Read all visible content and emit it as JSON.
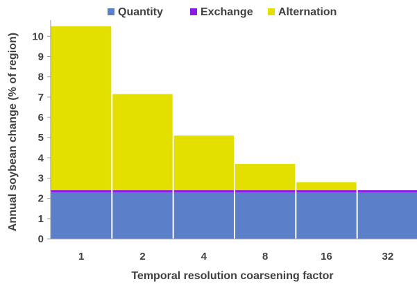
{
  "chart_data": {
    "type": "bar",
    "stacked": true,
    "categories": [
      "1",
      "2",
      "4",
      "8",
      "16",
      "32"
    ],
    "series": [
      {
        "name": "Quantity",
        "color": "#5B7FC9",
        "values": [
          2.3,
          2.3,
          2.3,
          2.3,
          2.3,
          2.3
        ]
      },
      {
        "name": "Exchange",
        "color": "#8B1AE6",
        "values": [
          0.1,
          0.1,
          0.1,
          0.1,
          0.1,
          0.1
        ]
      },
      {
        "name": "Alternation",
        "color": "#E3E000",
        "values": [
          8.1,
          4.75,
          2.7,
          1.3,
          0.4,
          0
        ]
      }
    ],
    "xlabel": "Temporal resolution coarsening factor",
    "ylabel": "Annual soybean change (% of region)",
    "ylim": [
      0,
      10.8
    ],
    "yticks": [
      "0",
      "1",
      "2",
      "3",
      "4",
      "5",
      "6",
      "7",
      "8",
      "9",
      "10"
    ],
    "legend_position": "top",
    "grid": false
  }
}
